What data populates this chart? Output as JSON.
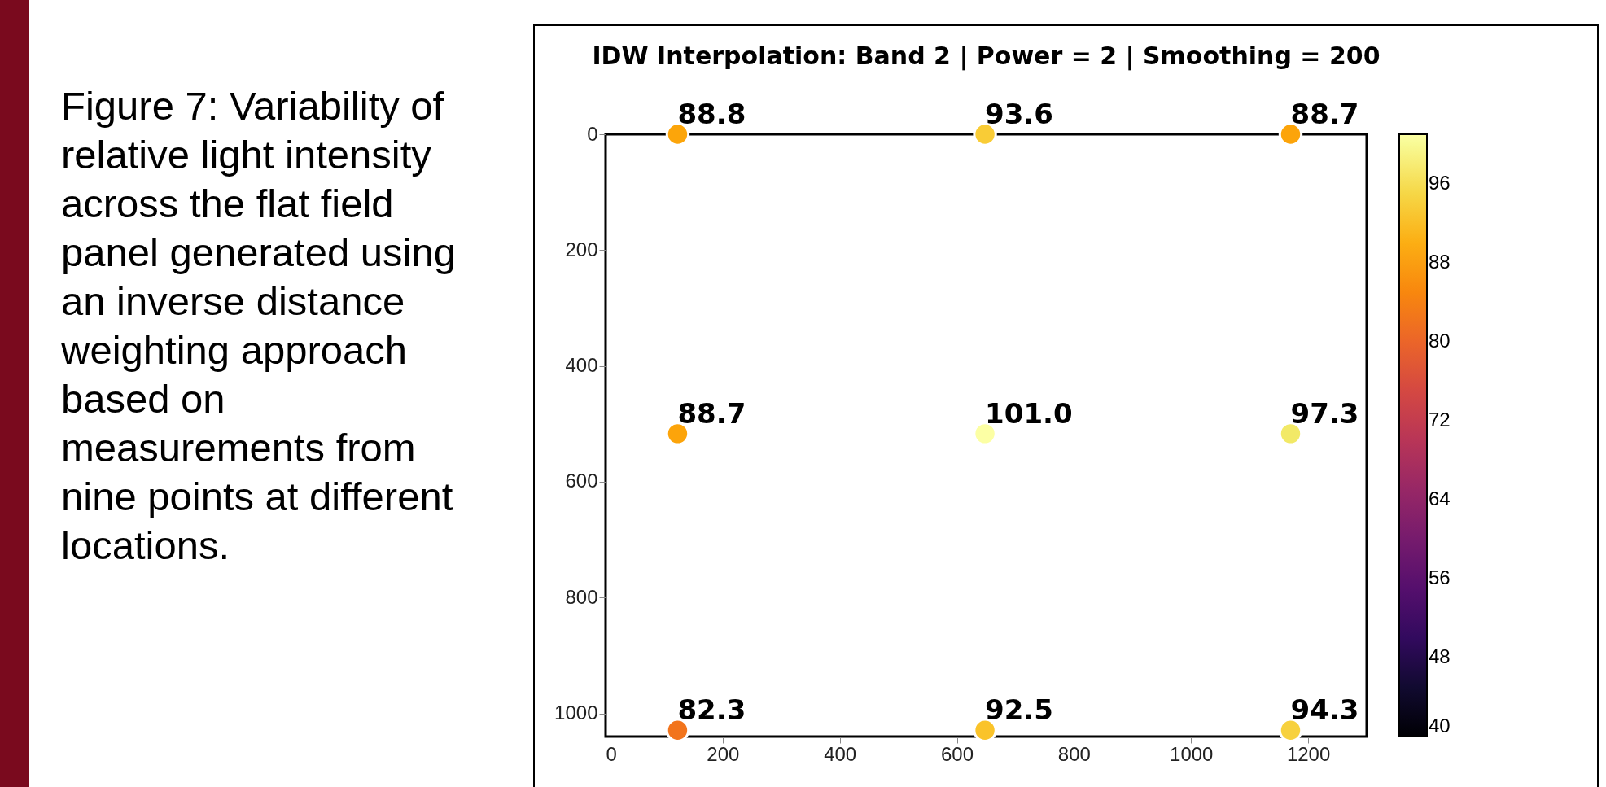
{
  "chart_data": {
    "type": "scatter",
    "title": "IDW Interpolation: Band 2 | Power = 2 | Smoothing = 200",
    "annotations": [
      "Figure 7: Variability of relative light intensity across the flat field panel generated using an inverse distance weighting approach based  on measurements from nine points at different locations.",
      {
        "text": "88.8",
        "x": 123,
        "y": 0
      },
      {
        "text": "93.6",
        "x": 648,
        "y": 0
      },
      {
        "text": "88.7",
        "x": 1170,
        "y": 0
      },
      {
        "text": "88.7",
        "x": 123,
        "y": 517
      },
      {
        "text": "101.0",
        "x": 648,
        "y": 517
      },
      {
        "text": "97.3",
        "x": 1170,
        "y": 517
      },
      {
        "text": "82.3",
        "x": 123,
        "y": 1029
      },
      {
        "text": "92.5",
        "x": 648,
        "y": 1029
      },
      {
        "text": "94.3",
        "x": 1170,
        "y": 1029
      }
    ],
    "x": [
      123,
      648,
      1170,
      123,
      648,
      1170,
      123,
      648,
      1170
    ],
    "values": [
      0,
      0,
      0,
      517,
      517,
      517,
      1029,
      1029,
      1029
    ],
    "cvalues": [
      88.8,
      93.6,
      88.7,
      88.7,
      101.0,
      97.3,
      82.3,
      92.5,
      94.3
    ],
    "xlim": [
      0,
      1300
    ],
    "xticks": [
      0,
      200,
      400,
      600,
      800,
      1000,
      1200
    ],
    "ylim": [
      1040,
      0
    ],
    "yticks": [
      0,
      200,
      400,
      600,
      800,
      1000
    ],
    "clim": [
      40,
      101
    ],
    "cticks": [
      40,
      48,
      56,
      64,
      72,
      80,
      88,
      96
    ],
    "marker": "circle",
    "grid": false
  }
}
